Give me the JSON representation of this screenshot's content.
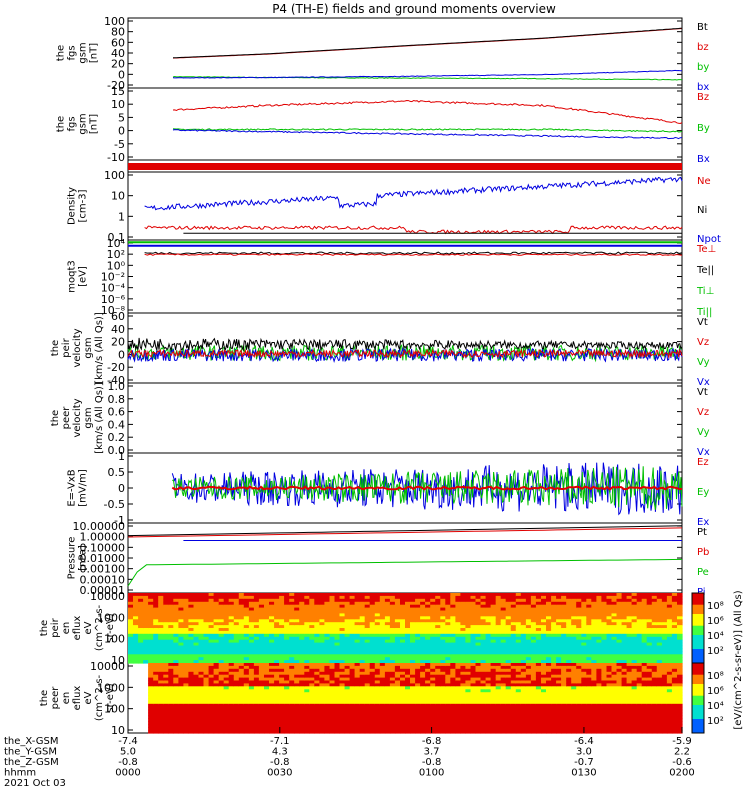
{
  "title": "P4 (TH-E) fields and ground moments overview",
  "colors": {
    "black": "#000000",
    "red": "#e00000",
    "green": "#00c000",
    "blue": "#0000e0"
  },
  "panels": [
    {
      "id": "fgs-gsm",
      "ylabel": [
        "the",
        "fgs",
        "gsm",
        "[nT]"
      ],
      "type": "line",
      "yticks": [
        "100",
        "80",
        "60",
        "40",
        "20",
        "0",
        "-20"
      ],
      "ylim": [
        -20,
        100
      ],
      "legend": [
        {
          "label": "Bt",
          "color": "#000000"
        },
        {
          "label": "bz",
          "color": "#e00000"
        },
        {
          "label": "by",
          "color": "#00c000"
        },
        {
          "label": "bx",
          "color": "#0000e0"
        }
      ]
    },
    {
      "id": "fgs-gsm-dsl",
      "ylabel": [
        "the",
        "fgs",
        "gsm",
        "[nT]"
      ],
      "type": "line",
      "yticks": [
        "15",
        "10",
        "5",
        "0",
        "-5",
        "-10"
      ],
      "ylim": [
        -15,
        18
      ],
      "legend": [
        {
          "label": "Bz",
          "color": "#e00000"
        },
        {
          "label": "By",
          "color": "#00c000"
        },
        {
          "label": "Bx",
          "color": "#0000e0"
        }
      ]
    },
    {
      "id": "density",
      "ylabel": [
        "Density",
        "[cm-3]"
      ],
      "type": "line",
      "yticks": [
        "100",
        "10",
        "1",
        "0.1"
      ],
      "log": true,
      "legend": [
        {
          "label": "Ne",
          "color": "#e00000"
        },
        {
          "label": "Ni",
          "color": "#000000"
        },
        {
          "label": "Npot",
          "color": "#0000e0"
        }
      ]
    },
    {
      "id": "temperature",
      "ylabel": [
        "moqt3",
        "[eV]"
      ],
      "type": "line",
      "yticks": [
        "10⁴",
        "10²",
        "10⁰",
        "10⁻²",
        "10⁻⁴",
        "10⁻⁶",
        "10⁻⁸"
      ],
      "log": true,
      "legend": [
        {
          "label": "Te⊥",
          "color": "#e00000"
        },
        {
          "label": "Te||",
          "color": "#000000"
        },
        {
          "label": "Ti⊥",
          "color": "#00c000"
        },
        {
          "label": "Ti||",
          "color": "#00c000"
        }
      ]
    },
    {
      "id": "peir-velocity",
      "ylabel": [
        "the",
        "peir",
        "velocity",
        "gsm",
        "[km/s (All Qs)]"
      ],
      "type": "line",
      "yticks": [
        "60",
        "40",
        "20",
        "0",
        "-20",
        "-40"
      ],
      "ylim": [
        -40,
        60
      ],
      "legend": [
        {
          "label": "Vt",
          "color": "#000000"
        },
        {
          "label": "Vz",
          "color": "#e00000"
        },
        {
          "label": "Vy",
          "color": "#00c000"
        },
        {
          "label": "Vx",
          "color": "#0000e0"
        }
      ]
    },
    {
      "id": "peer-velocity",
      "ylabel": [
        "the",
        "peer",
        "velocity",
        "gsm",
        "[km/s (All Qs)]"
      ],
      "type": "line",
      "yticks": [
        "1.0",
        "0.8",
        "0.6",
        "0.4",
        "0.2",
        "0.0"
      ],
      "ylim": [
        0,
        1
      ],
      "legend": [
        {
          "label": "Vt",
          "color": "#000000"
        },
        {
          "label": "Vz",
          "color": "#e00000"
        },
        {
          "label": "Vy",
          "color": "#00c000"
        },
        {
          "label": "Vx",
          "color": "#0000e0"
        }
      ]
    },
    {
      "id": "efield",
      "ylabel": [
        "E=-VxB",
        "[mV/m]"
      ],
      "type": "line",
      "yticks": [
        "1",
        "0.5",
        "0",
        "-0.5",
        "-1"
      ],
      "ylim": [
        -1.5,
        1.5
      ],
      "legend": [
        {
          "label": "Ez",
          "color": "#e00000"
        },
        {
          "label": "Ey",
          "color": "#00c000"
        },
        {
          "label": "Ex",
          "color": "#0000e0"
        }
      ]
    },
    {
      "id": "pressure",
      "ylabel": [
        "Pressure",
        "[nPa]"
      ],
      "type": "line",
      "yticks": [
        "10.00000",
        "1.00000",
        "0.10000",
        "0.01000",
        "0.00100",
        "0.00010",
        "0.00001"
      ],
      "log": true,
      "legend": [
        {
          "label": "Pt",
          "color": "#000000"
        },
        {
          "label": "Pb",
          "color": "#e00000"
        },
        {
          "label": "Pe",
          "color": "#00c000"
        },
        {
          "label": "Pi",
          "color": "#0000e0"
        }
      ]
    },
    {
      "id": "peir-eflux",
      "ylabel": [
        "the",
        "peir",
        "en",
        "eflux",
        "eV",
        "(cm^2-s-",
        "sr-eV)"
      ],
      "type": "spectrogram",
      "yticks": [
        "10000",
        "1000",
        "100",
        "10"
      ],
      "colorbar": [
        "10⁸",
        "10⁶",
        "10⁴",
        "10²"
      ]
    },
    {
      "id": "peer-eflux",
      "ylabel": [
        "the",
        "peer",
        "en",
        "eflux",
        "eV",
        "(cm^2-s-",
        "sr-eV)"
      ],
      "type": "spectrogram",
      "yticks": [
        "10000",
        "1000",
        "100",
        "10"
      ],
      "colorbar": [
        "10⁸",
        "10⁶",
        "10⁴",
        "10²"
      ]
    }
  ],
  "colorbar_label": "[eV/(cm^2-s-sr-eV)] (All Qs)",
  "xaxis": {
    "rows": [
      {
        "label": "the_X-GSM",
        "values": [
          "-7.4",
          "-7.1",
          "-6.8",
          "-6.4",
          "-5.9"
        ]
      },
      {
        "label": "the_Y-GSM",
        "values": [
          "5.0",
          "4.3",
          "3.7",
          "3.0",
          "2.2"
        ]
      },
      {
        "label": "the_Z-GSM",
        "values": [
          "-0.8",
          "-0.8",
          "-0.8",
          "-0.7",
          "-0.6"
        ]
      },
      {
        "label": "hhmm",
        "values": [
          "0000",
          "0030",
          "0100",
          "0130",
          "0200"
        ]
      }
    ],
    "date": "2021 Oct 03"
  },
  "chart_data": {
    "type": "line",
    "title": "P4 (TH-E) fields and ground moments overview",
    "x": [
      "0000",
      "0030",
      "0100",
      "0130",
      "0200"
    ],
    "series": [
      {
        "name": "Bt",
        "values": [
          28,
          38,
          52,
          65,
          82
        ]
      },
      {
        "name": "bz",
        "values": [
          28,
          38,
          52,
          65,
          82
        ]
      },
      {
        "name": "by",
        "values": [
          0,
          -2,
          -3,
          -4,
          -6
        ]
      },
      {
        "name": "bx",
        "values": [
          -3,
          -2,
          0,
          3,
          10
        ]
      },
      {
        "name": "Bz",
        "values": [
          7,
          10,
          12,
          10,
          2
        ]
      },
      {
        "name": "By",
        "values": [
          -1,
          -1,
          -1,
          -1,
          -2
        ]
      },
      {
        "name": "Bx",
        "values": [
          -1,
          -2,
          -3,
          -4,
          -5
        ]
      }
    ]
  }
}
